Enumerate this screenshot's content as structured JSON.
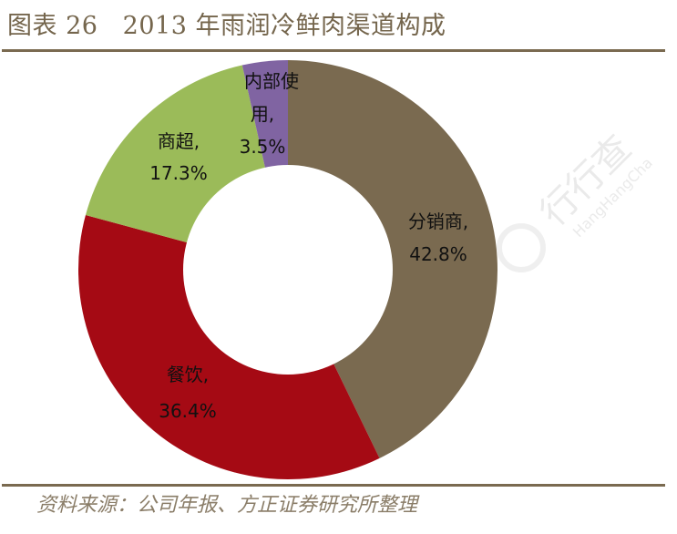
{
  "header": {
    "title": "图表 26   2013 年雨润冷鲜肉渠道构成"
  },
  "footer": {
    "source": "资料来源：公司年报、方正证券研究所整理"
  },
  "watermark": {
    "cn": "行行查",
    "en": "HangHangCha"
  },
  "colors": {
    "distributor": "#7a6a50",
    "catering": "#a50a14",
    "supermarket": "#9bbb59",
    "internal": "#8064a2",
    "title": "#75664d",
    "rule": "#7a6a50"
  },
  "chart_data": {
    "type": "pie",
    "subtype": "donut",
    "title": "2013 年雨润冷鲜肉渠道构成",
    "categories": [
      "分销商",
      "餐饮",
      "商超",
      "内部使用"
    ],
    "values": [
      42.8,
      36.4,
      17.3,
      3.5
    ],
    "unit": "%",
    "start_angle": "12 o'clock, clockwise",
    "data_labels": [
      {
        "line1": "分销商,",
        "line2": "42.8%"
      },
      {
        "line1": "餐饮,",
        "line2": "36.4%"
      },
      {
        "line1": "商超,",
        "line2": "17.3%"
      },
      {
        "line1": "内部使",
        "line1b": "用,",
        "line2": "3.5%"
      }
    ],
    "legend": "none"
  }
}
